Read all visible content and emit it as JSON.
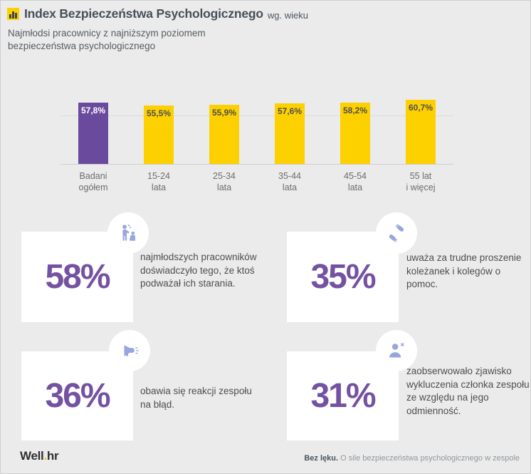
{
  "header": {
    "icon": "bar-chart-icon",
    "title": "Index Bezpieczeństwa Psychologicznego",
    "title_suffix": "wg. wieku",
    "subtitle_line1": "Najmłodsi pracownicy z najniższym poziomem",
    "subtitle_line2": "bezpieczeństwa psychologicznego"
  },
  "chart_data": {
    "type": "bar",
    "categories": [
      "Badani ogółem",
      "15-24 lata",
      "25-34 lata",
      "35-44 lata",
      "45-54 lata",
      "55 lat i więcej"
    ],
    "values": [
      57.8,
      55.5,
      55.9,
      57.6,
      58.2,
      60.7
    ],
    "value_labels": [
      "57,8%",
      "55,5%",
      "55,9%",
      "57,6%",
      "58,2%",
      "60,7%"
    ],
    "category_lines": [
      [
        "Badani",
        "ogółem"
      ],
      [
        "15-24",
        "lata"
      ],
      [
        "25-34",
        "lata"
      ],
      [
        "35-44",
        "lata"
      ],
      [
        "45-54",
        "lata"
      ],
      [
        "55 lat",
        "i więcej"
      ]
    ],
    "highlight_index": 0,
    "unit": "%",
    "grid": "two horizontal gridlines, no y-axis labels",
    "legend": "none",
    "title": "Index Bezpieczeństwa Psychologicznego wg. wieku"
  },
  "colors": {
    "background": "#ebebeb",
    "bar": "#fdd000",
    "highlight_bar": "#6a4a9d",
    "bar_value_on_yellow": "#4f4f4f",
    "bar_value_on_purple": "#ffffff",
    "stat_number": "#7451a1",
    "icon_accent": "#97a6dd",
    "logo_dot": "#fdb515"
  },
  "stats": [
    {
      "value": "58%",
      "icon": "bullying-icon",
      "text": "najmłodszych pracowników doświadczyło tego, że ktoś podważał ich starania."
    },
    {
      "value": "35%",
      "icon": "helping-hands-icon",
      "text": "uważa za trudne proszenie koleżanek i kolegów o pomoc."
    },
    {
      "value": "36%",
      "icon": "megaphone-icon",
      "text": "obawia się reakcji zespołu na błąd."
    },
    {
      "value": "31%",
      "icon": "user-excluded-icon",
      "text": "zaobserwowało zjawisko wykluczenia członka zespołu ze względu na jego odmienność."
    }
  ],
  "footer": {
    "logo_well": "Well",
    "logo_dot": ".",
    "logo_hr": "hr",
    "caption_bold": "Bez lęku.",
    "caption_rest": " O sile bezpieczeństwa psychologicznego w zespole"
  }
}
